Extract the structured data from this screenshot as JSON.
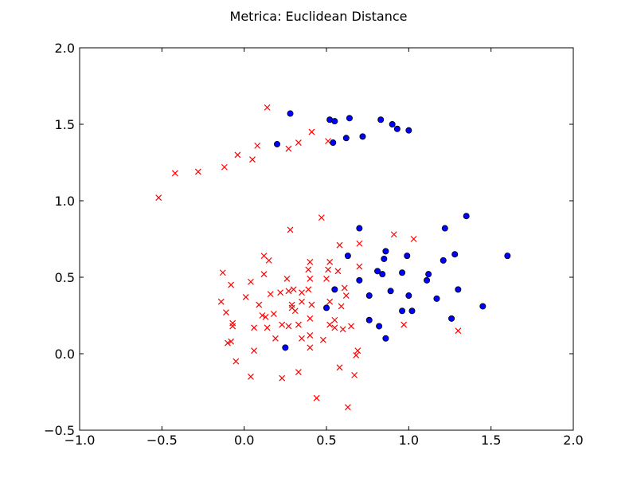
{
  "chart_data": {
    "type": "scatter",
    "title": "Metrica: Euclidean Distance",
    "xlabel": "",
    "ylabel": "",
    "xlim": [
      -1.0,
      2.0
    ],
    "ylim": [
      -0.5,
      2.0
    ],
    "grid": false,
    "x_ticks": [
      "−1.0",
      "−0.5",
      "0.0",
      "0.5",
      "1.0",
      "1.5",
      "2.0"
    ],
    "y_ticks": [
      "−0.5",
      "0.0",
      "0.5",
      "1.0",
      "1.5",
      "2.0"
    ],
    "series": [
      {
        "marker": "x",
        "color": "#ff0000",
        "points": [
          [
            -0.52,
            1.02
          ],
          [
            -0.42,
            1.18
          ],
          [
            -0.28,
            1.19
          ],
          [
            -0.12,
            1.22
          ],
          [
            -0.04,
            1.3
          ],
          [
            0.05,
            1.27
          ],
          [
            0.08,
            1.36
          ],
          [
            0.14,
            1.61
          ],
          [
            0.27,
            1.34
          ],
          [
            0.33,
            1.38
          ],
          [
            0.41,
            1.45
          ],
          [
            0.51,
            1.39
          ],
          [
            -0.13,
            0.53
          ],
          [
            -0.14,
            0.34
          ],
          [
            -0.11,
            0.27
          ],
          [
            -0.08,
            0.45
          ],
          [
            -0.07,
            0.2
          ],
          [
            -0.07,
            0.18
          ],
          [
            -0.1,
            0.07
          ],
          [
            -0.08,
            0.08
          ],
          [
            -0.05,
            -0.05
          ],
          [
            0.01,
            0.37
          ],
          [
            0.04,
            0.47
          ],
          [
            0.06,
            0.17
          ],
          [
            0.06,
            0.02
          ],
          [
            0.04,
            -0.15
          ],
          [
            0.09,
            0.32
          ],
          [
            0.11,
            0.25
          ],
          [
            0.12,
            0.64
          ],
          [
            0.12,
            0.52
          ],
          [
            0.13,
            0.24
          ],
          [
            0.14,
            0.17
          ],
          [
            0.15,
            0.61
          ],
          [
            0.16,
            0.39
          ],
          [
            0.18,
            0.26
          ],
          [
            0.19,
            0.1
          ],
          [
            0.22,
            0.4
          ],
          [
            0.23,
            0.19
          ],
          [
            0.23,
            -0.16
          ],
          [
            0.26,
            0.49
          ],
          [
            0.27,
            0.41
          ],
          [
            0.27,
            0.18
          ],
          [
            0.28,
            0.81
          ],
          [
            0.29,
            0.3
          ],
          [
            0.29,
            0.32
          ],
          [
            0.3,
            0.42
          ],
          [
            0.31,
            0.28
          ],
          [
            0.33,
            0.19
          ],
          [
            0.33,
            -0.12
          ],
          [
            0.35,
            0.4
          ],
          [
            0.35,
            0.34
          ],
          [
            0.35,
            0.1
          ],
          [
            0.39,
            0.55
          ],
          [
            0.39,
            0.42
          ],
          [
            0.4,
            0.6
          ],
          [
            0.4,
            0.49
          ],
          [
            0.4,
            0.23
          ],
          [
            0.4,
            0.12
          ],
          [
            0.4,
            0.04
          ],
          [
            0.41,
            0.32
          ],
          [
            0.44,
            -0.29
          ],
          [
            0.47,
            0.89
          ],
          [
            0.48,
            0.09
          ],
          [
            0.5,
            0.49
          ],
          [
            0.51,
            0.55
          ],
          [
            0.52,
            0.6
          ],
          [
            0.52,
            0.34
          ],
          [
            0.52,
            0.19
          ],
          [
            0.55,
            0.22
          ],
          [
            0.55,
            0.17
          ],
          [
            0.57,
            0.54
          ],
          [
            0.58,
            0.71
          ],
          [
            0.58,
            -0.09
          ],
          [
            0.59,
            0.31
          ],
          [
            0.6,
            0.16
          ],
          [
            0.61,
            0.43
          ],
          [
            0.62,
            0.38
          ],
          [
            0.63,
            -0.35
          ],
          [
            0.65,
            0.18
          ],
          [
            0.67,
            -0.14
          ],
          [
            0.68,
            -0.01
          ],
          [
            0.69,
            0.02
          ],
          [
            0.7,
            0.72
          ],
          [
            0.7,
            0.57
          ],
          [
            0.91,
            0.78
          ],
          [
            0.97,
            0.19
          ],
          [
            1.03,
            0.75
          ],
          [
            1.3,
            0.15
          ]
        ]
      },
      {
        "marker": "o",
        "color": "#0000ff",
        "points": [
          [
            0.2,
            1.37
          ],
          [
            0.28,
            1.57
          ],
          [
            0.52,
            1.53
          ],
          [
            0.54,
            1.38
          ],
          [
            0.55,
            1.52
          ],
          [
            0.62,
            1.41
          ],
          [
            0.64,
            1.54
          ],
          [
            0.72,
            1.42
          ],
          [
            0.83,
            1.53
          ],
          [
            0.9,
            1.5
          ],
          [
            0.93,
            1.47
          ],
          [
            1.0,
            1.46
          ],
          [
            0.25,
            0.04
          ],
          [
            0.5,
            0.3
          ],
          [
            0.55,
            0.42
          ],
          [
            0.63,
            0.64
          ],
          [
            0.7,
            0.82
          ],
          [
            0.7,
            0.48
          ],
          [
            0.76,
            0.38
          ],
          [
            0.76,
            0.22
          ],
          [
            0.81,
            0.54
          ],
          [
            0.82,
            0.18
          ],
          [
            0.84,
            0.52
          ],
          [
            0.85,
            0.62
          ],
          [
            0.86,
            0.67
          ],
          [
            0.86,
            0.1
          ],
          [
            0.89,
            0.41
          ],
          [
            0.96,
            0.53
          ],
          [
            0.96,
            0.28
          ],
          [
            0.99,
            0.64
          ],
          [
            1.0,
            0.38
          ],
          [
            1.02,
            0.28
          ],
          [
            1.11,
            0.48
          ],
          [
            1.12,
            0.52
          ],
          [
            1.17,
            0.36
          ],
          [
            1.21,
            0.61
          ],
          [
            1.22,
            0.82
          ],
          [
            1.26,
            0.23
          ],
          [
            1.28,
            0.65
          ],
          [
            1.3,
            0.42
          ],
          [
            1.35,
            0.9
          ],
          [
            1.45,
            0.31
          ],
          [
            1.6,
            0.64
          ]
        ]
      }
    ]
  }
}
